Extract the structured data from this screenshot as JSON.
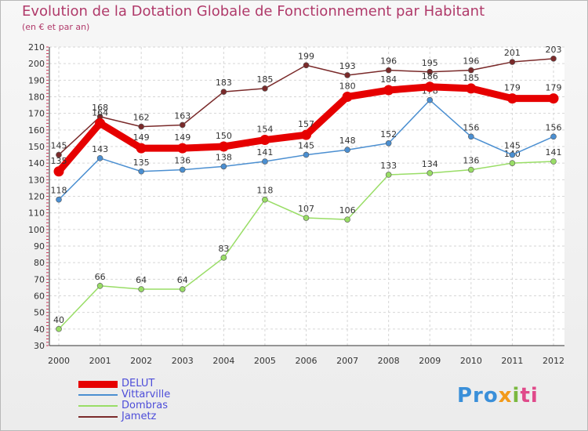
{
  "chart_data": {
    "type": "line",
    "title": "Evolution de la Dotation Globale de Fonctionnement par Habitant",
    "subtitle": "(en € et par an)",
    "xlabel": "",
    "ylabel": "",
    "ylim": [
      30,
      210
    ],
    "y_ticks": [
      30,
      40,
      50,
      60,
      70,
      80,
      90,
      100,
      110,
      120,
      130,
      140,
      150,
      160,
      170,
      180,
      190,
      200,
      210
    ],
    "categories": [
      "2000",
      "2001",
      "2002",
      "2003",
      "2004",
      "2005",
      "2006",
      "2007",
      "2008",
      "2009",
      "2010",
      "2011",
      "2012"
    ],
    "series": [
      {
        "name": "DELUT",
        "color": "#e60000",
        "values": [
          135,
          164,
          149,
          149,
          150,
          154,
          157,
          180,
          184,
          186,
          185,
          179,
          179
        ],
        "labels": [
          "135",
          "164",
          "149",
          "149",
          "150",
          "154",
          "157",
          "180",
          "184",
          "186",
          "185",
          "179",
          "179"
        ]
      },
      {
        "name": "Vittarville",
        "color": "#4b8fd1",
        "values": [
          118,
          143,
          135,
          136,
          138,
          141,
          145,
          148,
          152,
          178,
          156,
          145,
          156
        ],
        "labels": [
          "118",
          "143",
          "135",
          "136",
          "138",
          "141",
          "145",
          "148",
          "152",
          "178",
          "156",
          "145",
          "156"
        ]
      },
      {
        "name": "Dombras",
        "color": "#99dd66",
        "values": [
          40,
          66,
          64,
          64,
          83,
          118,
          107,
          106,
          133,
          134,
          136,
          140,
          141
        ],
        "labels": [
          "40",
          "66",
          "64",
          "64",
          "83",
          "118",
          "107",
          "106",
          "133",
          "134",
          "136",
          "140",
          "141"
        ]
      },
      {
        "name": "Jametz",
        "color": "#7a2a2a",
        "values": [
          145,
          168,
          162,
          163,
          183,
          185,
          199,
          193,
          196,
          195,
          196,
          201,
          203
        ],
        "labels": [
          "145",
          "168",
          "162",
          "163",
          "183",
          "185",
          "199",
          "193",
          "196",
          "195",
          "196",
          "201",
          "203"
        ]
      }
    ]
  },
  "logo": {
    "p1": "Pro",
    "p2": "x",
    "p3": "i",
    "p4": "ti"
  }
}
